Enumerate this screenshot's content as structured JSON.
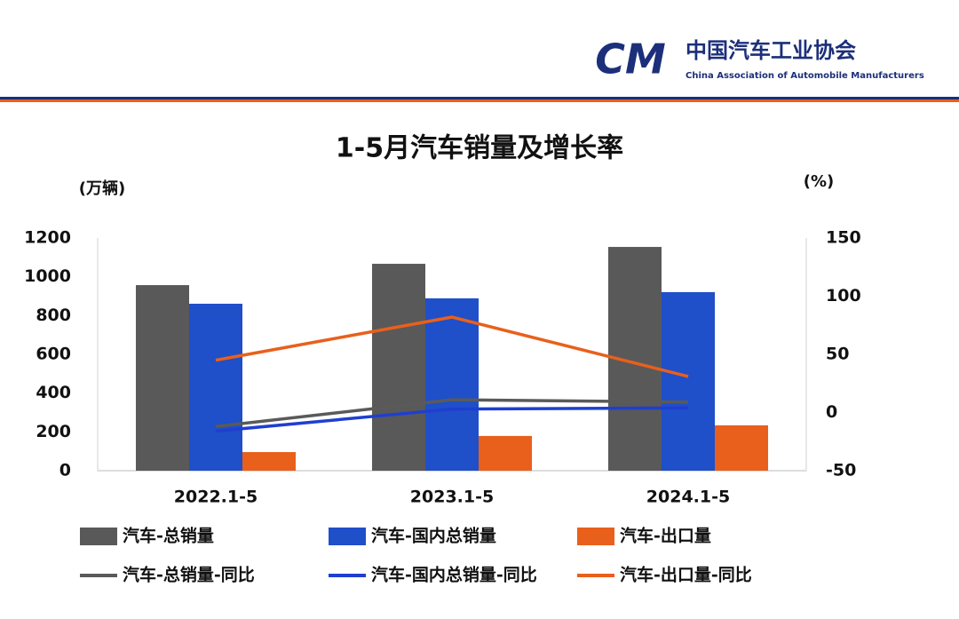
{
  "header": {
    "logo": "CM",
    "org_cn": "中国汽车工业协会",
    "org_en": "China Association of Automobile Manufacturers"
  },
  "chart_data": {
    "type": "bar",
    "title": "1-5月汽车销量及增长率",
    "y_label": "(万辆)",
    "y2_label": "(%)",
    "categories": [
      "2022.1-5",
      "2023.1-5",
      "2024.1-5"
    ],
    "ylim": [
      0,
      1200
    ],
    "yticks": [
      0,
      200,
      400,
      600,
      800,
      1000,
      1200
    ],
    "y2lim": [
      -50,
      150
    ],
    "y2ticks": [
      -50,
      0,
      50,
      100,
      150
    ],
    "grid": false,
    "series": [
      {
        "name": "汽车-总销量",
        "type": "bar",
        "color": "#595959",
        "values": [
          957,
          1067,
          1154
        ]
      },
      {
        "name": "汽车-国内总销量",
        "type": "bar",
        "color": "#1f4fc9",
        "values": [
          861,
          889,
          921
        ]
      },
      {
        "name": "汽车-出口量",
        "type": "bar",
        "color": "#e8601c",
        "values": [
          96,
          179,
          234
        ]
      },
      {
        "name": "汽车-总销量-同比",
        "type": "line",
        "axis": "y2",
        "color": "#5a5a5a",
        "values": [
          -12,
          11,
          9
        ]
      },
      {
        "name": "汽车-国内总销量-同比",
        "type": "line",
        "axis": "y2",
        "color": "#1f3fd0",
        "values": [
          -16,
          3,
          4
        ]
      },
      {
        "name": "汽车-出口量-同比",
        "type": "line",
        "axis": "y2",
        "color": "#e8601c",
        "values": [
          45,
          82,
          31
        ]
      }
    ]
  }
}
